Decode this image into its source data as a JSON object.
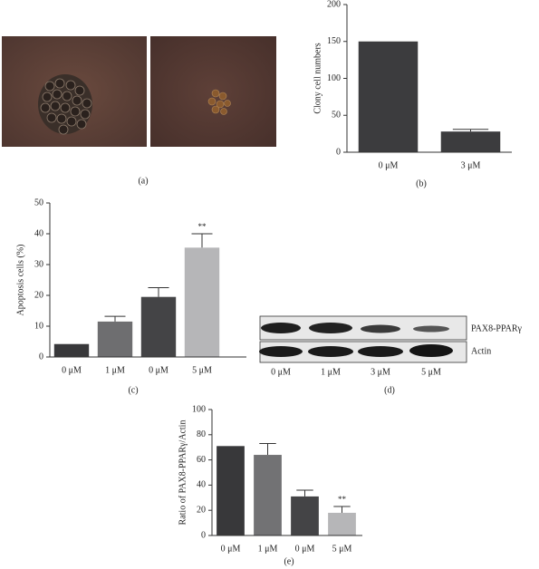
{
  "chart_data": [
    {
      "type": "bar",
      "panel": "(b)",
      "ylabel": "Clony cell numbers",
      "categories": [
        "0 μM",
        "3 μM"
      ],
      "values": [
        150,
        28
      ],
      "errors": [
        null,
        3
      ],
      "colors": [
        "#3c3c3e",
        "#3c3c3e"
      ],
      "ylim": [
        0,
        200
      ],
      "yticks": [
        0,
        50,
        100,
        150,
        200
      ]
    },
    {
      "type": "bar",
      "panel": "(c)",
      "ylabel": "Apoptosis cells (%)",
      "categories": [
        "0 μM",
        "1 μM",
        "0 μM",
        "5 μM"
      ],
      "values": [
        4.2,
        11.5,
        19.5,
        35.5
      ],
      "errors": [
        null,
        1.7,
        3,
        4.5
      ],
      "value_annotations": [
        null,
        null,
        null,
        "**"
      ],
      "colors": [
        "#38383a",
        "#6e6e70",
        "#444446",
        "#b6b6b8"
      ],
      "ylim": [
        0,
        50
      ],
      "yticks": [
        0,
        10,
        20,
        30,
        40,
        50
      ]
    },
    {
      "type": "bar",
      "panel": "(e)",
      "ylabel": "Ratio of PAX8-PPARγ/Actin",
      "categories": [
        "0 μM",
        "1 μM",
        "0 μM",
        "5 μM"
      ],
      "values": [
        71,
        64,
        31,
        18
      ],
      "errors": [
        null,
        9,
        5,
        5
      ],
      "value_annotations": [
        null,
        null,
        null,
        "**"
      ],
      "colors": [
        "#38383a",
        "#727274",
        "#444446",
        "#b6b6b8"
      ],
      "ylim": [
        0,
        100
      ],
      "yticks": [
        0,
        20,
        40,
        60,
        80,
        100
      ]
    }
  ],
  "images": {
    "panel": "(a)"
  },
  "blot": {
    "panel": "(d)",
    "rows": [
      "PAX8-PPARγ",
      "Actin"
    ],
    "lanes": [
      "0 μM",
      "1 μM",
      "3 μM",
      "5 μM"
    ]
  }
}
